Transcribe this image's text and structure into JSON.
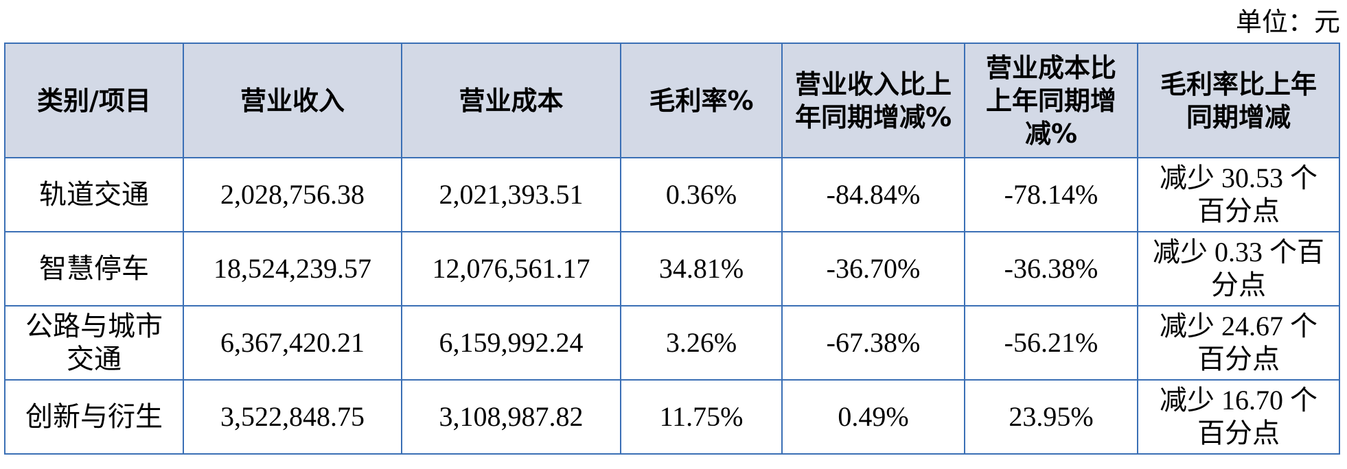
{
  "unit": "单位：元",
  "table": {
    "header": [
      "类别/项目",
      "营业收入",
      "营业成本",
      "毛利率%",
      "营业收入比上年同期增减%",
      "营业成本比上年同期增减%",
      "毛利率比上年同期增减"
    ],
    "rows": [
      [
        "轨道交通",
        "2,028,756.38",
        "2,021,393.51",
        "0.36%",
        "-84.84%",
        "-78.14%",
        "减少 30.53 个百分点"
      ],
      [
        "智慧停车",
        "18,524,239.57",
        "12,076,561.17",
        "34.81%",
        "-36.70%",
        "-36.38%",
        "减少 0.33 个百分点"
      ],
      [
        "公路与城市交通",
        "6,367,420.21",
        "6,159,992.24",
        "3.26%",
        "-67.38%",
        "-56.21%",
        "减少 24.67 个百分点"
      ],
      [
        "创新与衍生",
        "3,522,848.75",
        "3,108,987.82",
        "11.75%",
        "0.49%",
        "23.95%",
        "减少 16.70 个百分点"
      ]
    ]
  }
}
